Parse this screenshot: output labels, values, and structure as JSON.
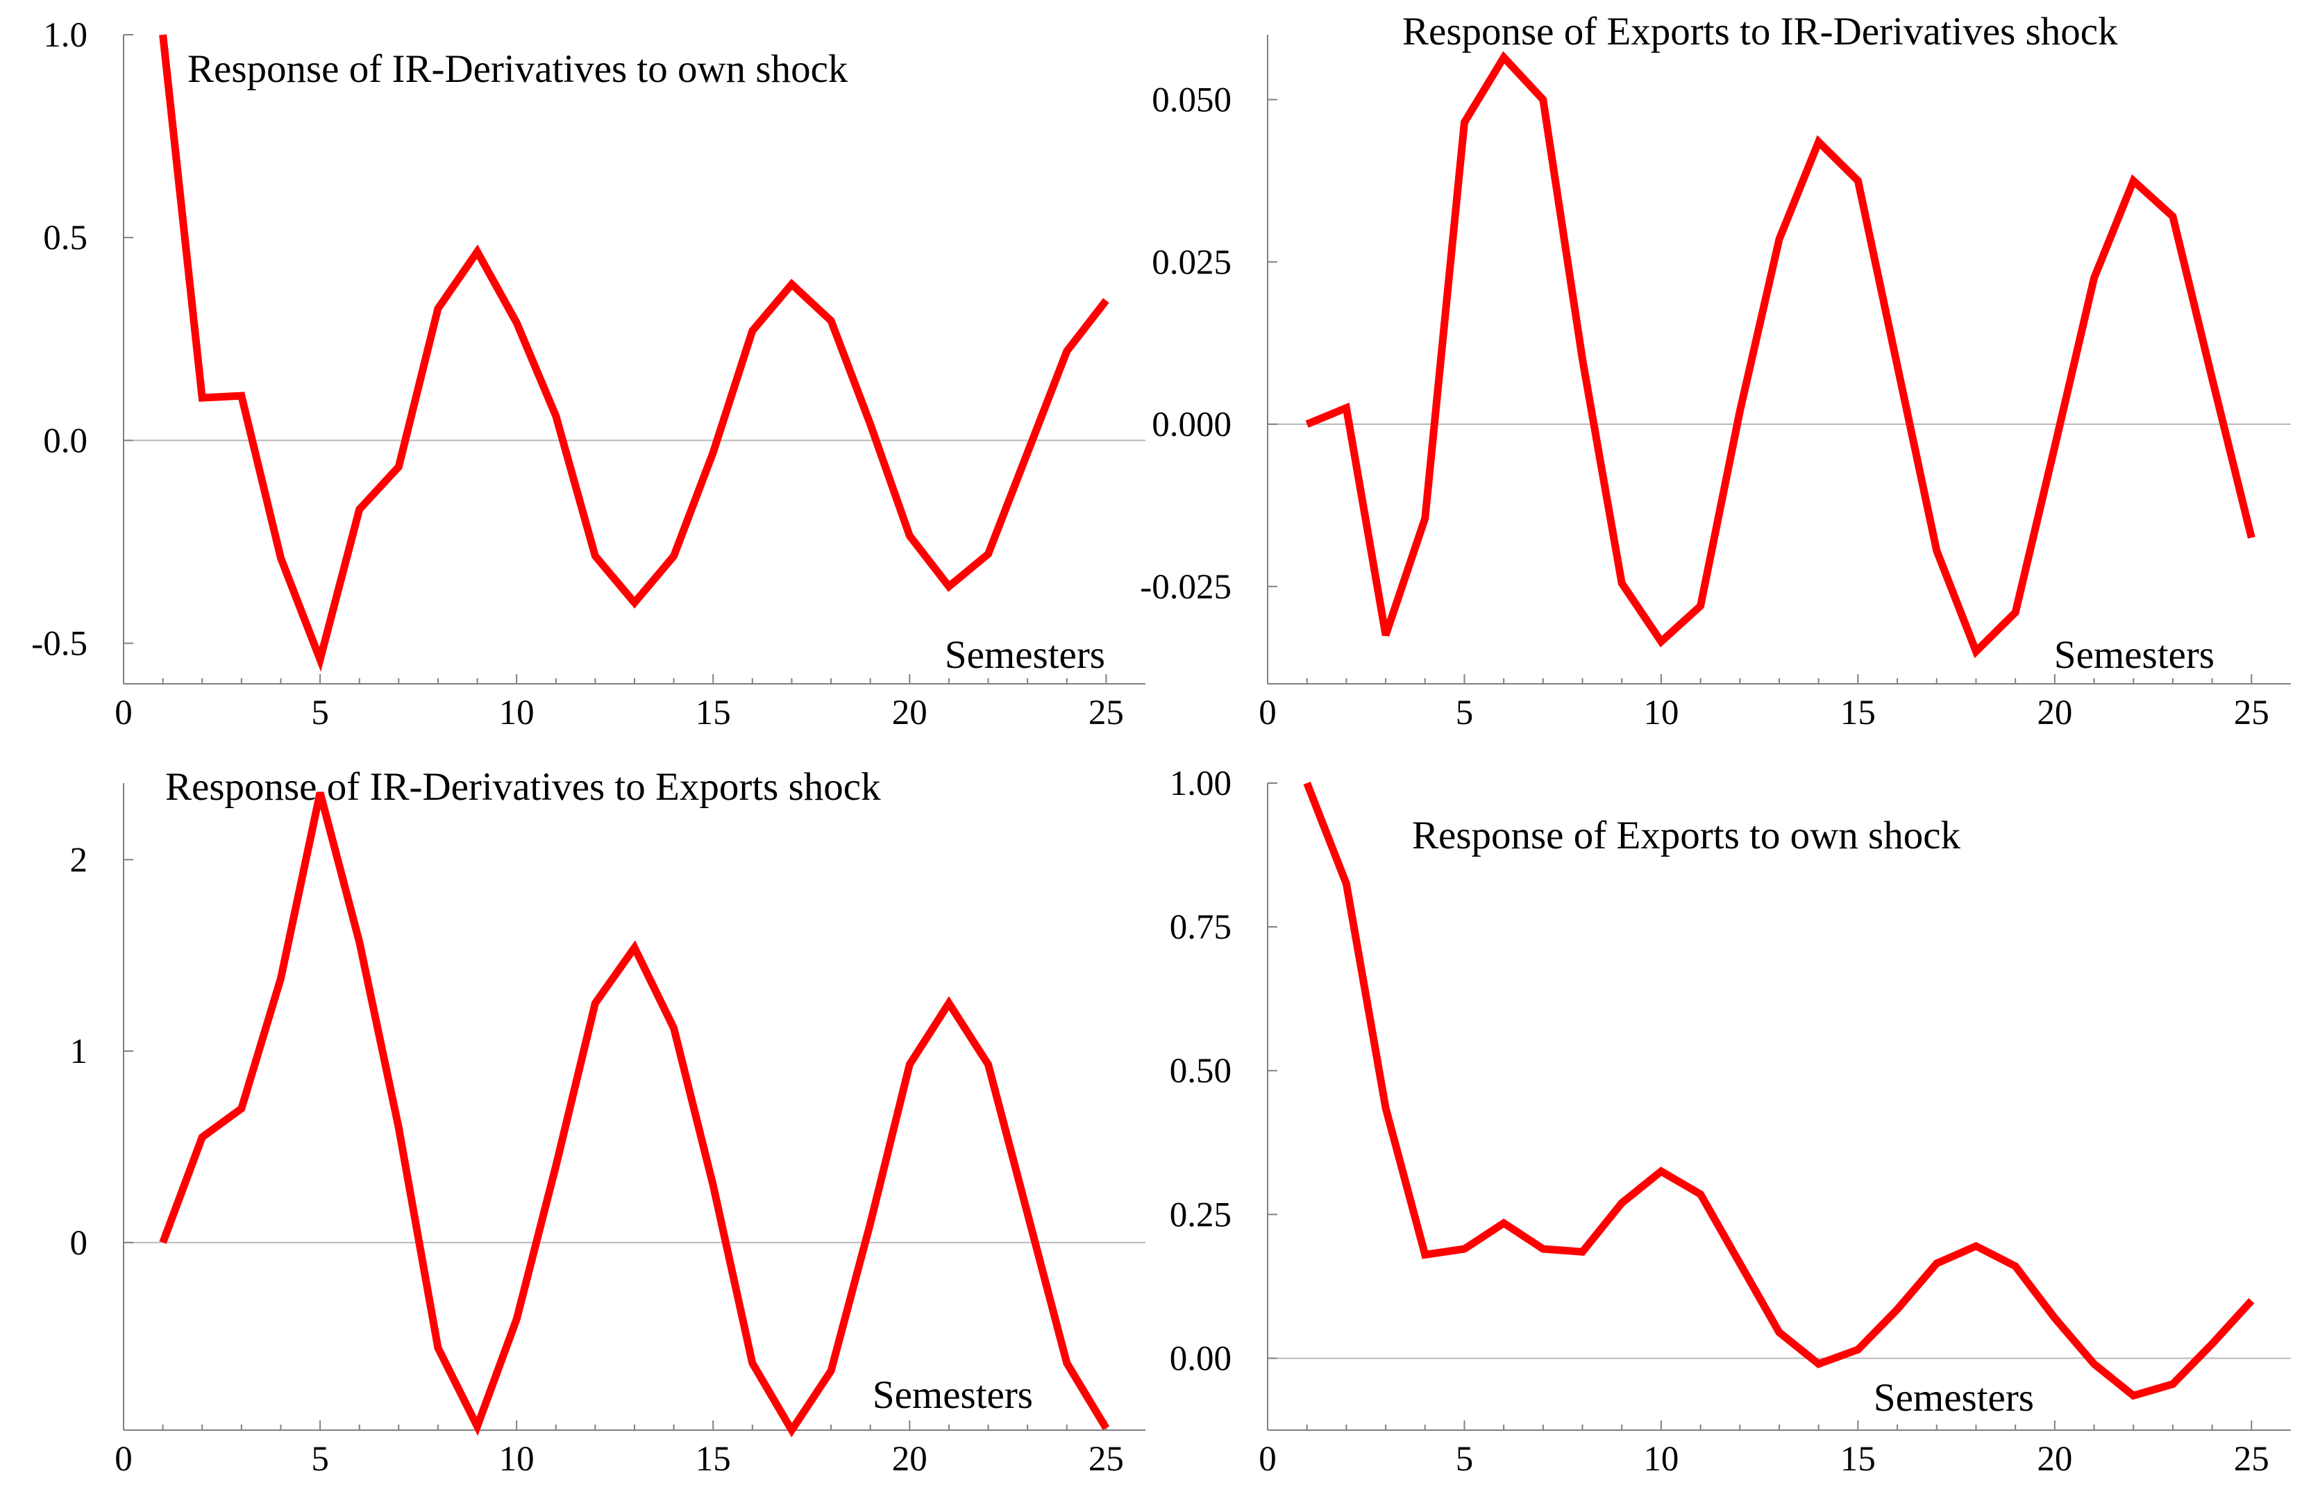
{
  "chart_data": [
    {
      "type": "line",
      "title": "Response of IR-Derivatives to own shock",
      "xlabel": "Semesters",
      "ylabel": "",
      "x": [
        1,
        2,
        3,
        4,
        5,
        6,
        7,
        8,
        9,
        10,
        11,
        12,
        13,
        14,
        15,
        16,
        17,
        18,
        19,
        20,
        21,
        22,
        23,
        24,
        25
      ],
      "xlim": [
        0,
        26
      ],
      "ylim": [
        -0.6,
        1.0
      ],
      "xticks": [
        "0",
        "5",
        "10",
        "15",
        "20",
        "25"
      ],
      "xtick_values": [
        0,
        5,
        10,
        15,
        20,
        25
      ],
      "yticks": [
        "1.0",
        "0.5",
        "0.0",
        "-0.5"
      ],
      "ytick_values": [
        1.0,
        0.5,
        0.0,
        -0.5
      ],
      "zero_line": true,
      "series": [
        {
          "color": "#ff0000",
          "values": [
            1.0,
            0.105,
            0.11,
            -0.29,
            -0.54,
            -0.17,
            -0.065,
            0.325,
            0.465,
            0.29,
            0.06,
            -0.285,
            -0.4,
            -0.285,
            -0.03,
            0.27,
            0.385,
            0.295,
            0.04,
            -0.235,
            -0.36,
            -0.28,
            -0.03,
            0.22,
            0.345
          ]
        }
      ]
    },
    {
      "type": "line",
      "title": "Response of Exports to IR-Derivatives shock",
      "xlabel": "Semesters",
      "ylabel": "",
      "x": [
        1,
        2,
        3,
        4,
        5,
        6,
        7,
        8,
        9,
        10,
        11,
        12,
        13,
        14,
        15,
        16,
        17,
        18,
        19,
        20,
        21,
        22,
        23,
        24,
        25
      ],
      "xlim": [
        0,
        26
      ],
      "ylim": [
        -0.04,
        0.06
      ],
      "xticks": [
        "0",
        "5",
        "10",
        "15",
        "20",
        "25"
      ],
      "xtick_values": [
        0,
        5,
        10,
        15,
        20,
        25
      ],
      "yticks": [
        "0.050",
        "0.025",
        "0.000",
        "-0.025"
      ],
      "ytick_values": [
        0.05,
        0.025,
        0.0,
        -0.025
      ],
      "zero_line": true,
      "series": [
        {
          "color": "#ff0000",
          "values": [
            0.0,
            0.0025,
            -0.0325,
            -0.0145,
            0.0465,
            0.0565,
            0.05,
            0.01,
            -0.0245,
            -0.0335,
            -0.028,
            0.002,
            0.0285,
            0.0435,
            0.0375,
            0.009,
            -0.0195,
            -0.035,
            -0.029,
            -0.0035,
            0.0225,
            0.0375,
            0.032,
            0.007,
            -0.0175
          ]
        }
      ]
    },
    {
      "type": "line",
      "title": "Response of IR-Derivatives to Exports shock",
      "xlabel": "Semesters",
      "ylabel": "",
      "x": [
        1,
        2,
        3,
        4,
        5,
        6,
        7,
        8,
        9,
        10,
        11,
        12,
        13,
        14,
        15,
        16,
        17,
        18,
        19,
        20,
        21,
        22,
        23,
        24,
        25
      ],
      "xlim": [
        0,
        26
      ],
      "ylim": [
        -0.98,
        2.4
      ],
      "xticks": [
        "0",
        "5",
        "10",
        "15",
        "20",
        "25"
      ],
      "xtick_values": [
        0,
        5,
        10,
        15,
        20,
        25
      ],
      "yticks": [
        "2",
        "1",
        "0"
      ],
      "ytick_values": [
        2,
        1,
        0
      ],
      "zero_line": true,
      "series": [
        {
          "color": "#ff0000",
          "values": [
            0.0,
            0.55,
            0.7,
            1.38,
            2.35,
            1.57,
            0.6,
            -0.55,
            -0.96,
            -0.4,
            0.4,
            1.25,
            1.54,
            1.12,
            0.3,
            -0.63,
            -0.98,
            -0.67,
            0.1,
            0.93,
            1.25,
            0.93,
            0.15,
            -0.63,
            -0.97
          ]
        }
      ]
    },
    {
      "type": "line",
      "title": "Response of Exports to own shock",
      "xlabel": "Semesters",
      "ylabel": "",
      "x": [
        1,
        2,
        3,
        4,
        5,
        6,
        7,
        8,
        9,
        10,
        11,
        12,
        13,
        14,
        15,
        16,
        17,
        18,
        19,
        20,
        21,
        22,
        23,
        24,
        25
      ],
      "xlim": [
        0,
        26
      ],
      "ylim": [
        -0.125,
        1.0
      ],
      "xticks": [
        "0",
        "5",
        "10",
        "15",
        "20",
        "25"
      ],
      "xtick_values": [
        0,
        5,
        10,
        15,
        20,
        25
      ],
      "yticks": [
        "1.00",
        "0.75",
        "0.50",
        "0.25",
        "0.00"
      ],
      "ytick_values": [
        1.0,
        0.75,
        0.5,
        0.25,
        0.0
      ],
      "zero_line": true,
      "series": [
        {
          "color": "#ff0000",
          "values": [
            1.0,
            0.825,
            0.435,
            0.18,
            0.19,
            0.235,
            0.19,
            0.185,
            0.27,
            0.325,
            0.285,
            0.165,
            0.045,
            -0.01,
            0.015,
            0.085,
            0.165,
            0.195,
            0.16,
            0.07,
            -0.01,
            -0.065,
            -0.045,
            0.025,
            0.1
          ]
        }
      ]
    }
  ]
}
